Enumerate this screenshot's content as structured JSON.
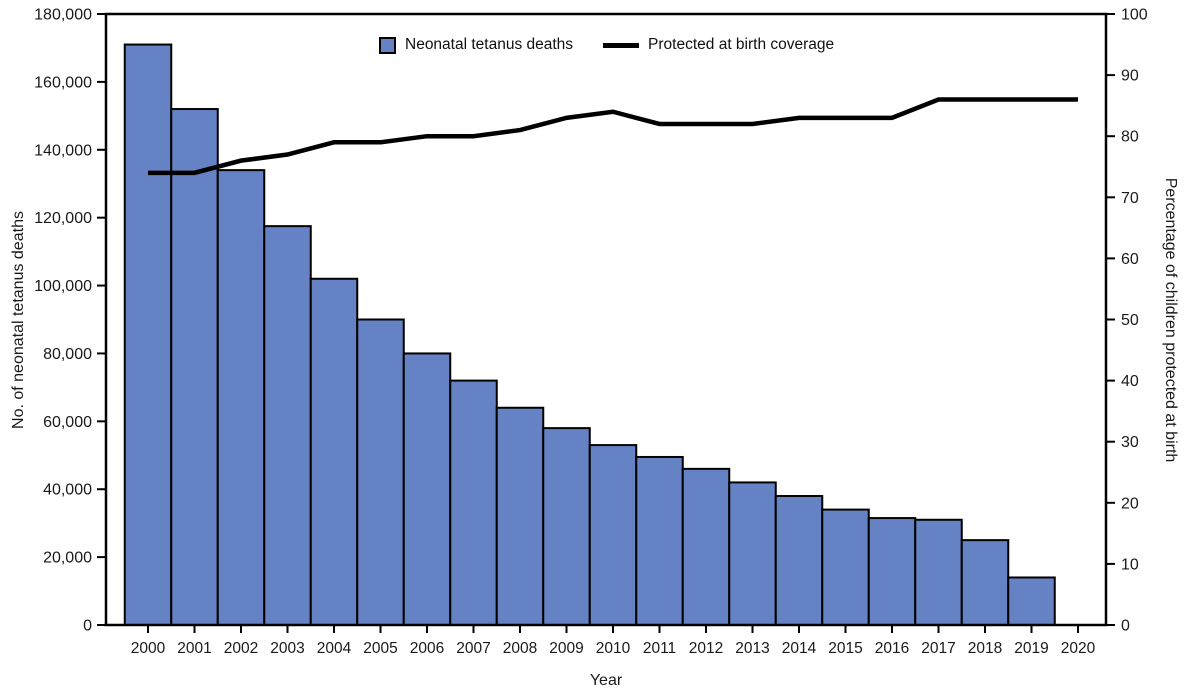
{
  "figure": {
    "legend": [
      {
        "label": "Neonatal tetanus deaths",
        "swatch": "blue-square"
      },
      {
        "label": "Protected at birth coverage",
        "swatch": "black-line"
      }
    ]
  },
  "colors": {
    "background": "#ffffff",
    "bar_fill": "#6583c4",
    "bar_border": "#000000",
    "line": "#000000",
    "axis": "#000000",
    "text": "#1a1a1a"
  },
  "chart_data": {
    "type": "combo",
    "subtypes": [
      "bar",
      "line"
    ],
    "title": "",
    "xlabel": "Year",
    "grid": false,
    "legend_position": "top-center-inside",
    "x": [
      2000,
      2001,
      2002,
      2003,
      2004,
      2005,
      2006,
      2007,
      2008,
      2009,
      2010,
      2011,
      2012,
      2013,
      2014,
      2015,
      2016,
      2017,
      2018,
      2019,
      2020
    ],
    "x_tick_labels": [
      "2000",
      "2001",
      "2002",
      "2003",
      "2004",
      "2005",
      "2006",
      "2007",
      "2008",
      "2009",
      "2010",
      "2011",
      "2012",
      "2013",
      "2014",
      "2015",
      "2016",
      "2017",
      "2018",
      "2019",
      "2020"
    ],
    "y_left": {
      "label": "No. of neonatal tetanus deaths",
      "min": 0,
      "max": 180000,
      "tick_step": 20000,
      "tick_labels": [
        "0",
        "20,000",
        "40,000",
        "60,000",
        "80,000",
        "100,000",
        "120,000",
        "140,000",
        "160,000",
        "180,000"
      ]
    },
    "y_right": {
      "label": "Percentage of children protected at birth",
      "min": 0,
      "max": 100,
      "tick_step": 10,
      "tick_labels": [
        "0",
        "10",
        "20",
        "30",
        "40",
        "50",
        "60",
        "70",
        "80",
        "90",
        "100"
      ]
    },
    "series": [
      {
        "name": "Neonatal tetanus deaths",
        "type": "bar",
        "axis": "left",
        "color": "#6583c4",
        "values": [
          171000,
          152000,
          134000,
          117500,
          102000,
          90000,
          80000,
          72000,
          64000,
          58000,
          53000,
          49500,
          46000,
          42000,
          38000,
          34000,
          31500,
          31000,
          25000,
          14000,
          null
        ]
      },
      {
        "name": "Protected at birth coverage",
        "type": "line",
        "axis": "right",
        "color": "#000000",
        "values": [
          74,
          74,
          76,
          77,
          79,
          79,
          80,
          80,
          81,
          83,
          84,
          82,
          82,
          82,
          83,
          83,
          83,
          86,
          86,
          86,
          86
        ]
      }
    ]
  }
}
